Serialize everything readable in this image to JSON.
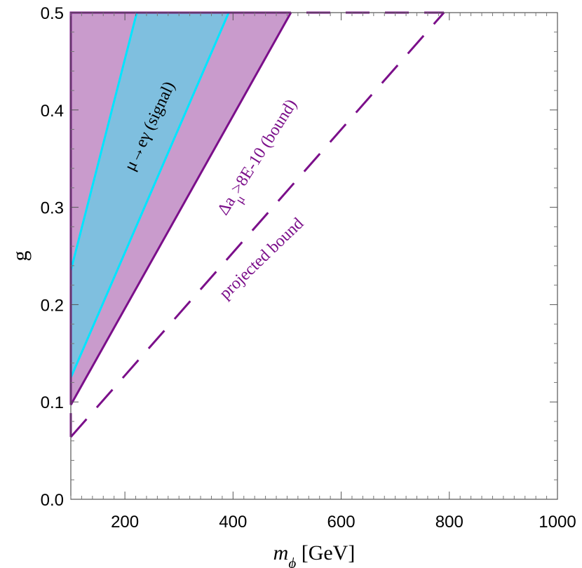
{
  "chart_data": {
    "type": "area",
    "xlabel_main": "m",
    "xlabel_sub": "ϕ",
    "xlabel_unit": " [GeV]",
    "ylabel": "g",
    "xlim": [
      100,
      1000
    ],
    "ylim": [
      0.0,
      0.5
    ],
    "x_ticks": [
      200,
      400,
      600,
      800,
      1000
    ],
    "x_tick_labels": [
      "200",
      "400",
      "600",
      "800",
      "1000"
    ],
    "y_ticks": [
      0.0,
      0.1,
      0.2,
      0.3,
      0.4,
      0.5
    ],
    "y_tick_labels": [
      "0.0",
      "0.1",
      "0.2",
      "0.3",
      "0.4",
      "0.5"
    ],
    "grid": false,
    "colors": {
      "bound_fill": "#c99bcc",
      "bound_line": "#7b0f8a",
      "signal_fill": "#7fbfdf",
      "signal_line": "#00e5ff",
      "projected_line": "#7b0f8a",
      "signal_text": "#000000",
      "bound_text": "#7b0f8a"
    },
    "regions": [
      {
        "id": "bound",
        "polygon": [
          [
            100,
            0.097
          ],
          [
            100,
            0.5
          ],
          [
            507,
            0.5
          ]
        ]
      },
      {
        "id": "signal",
        "polygon": [
          [
            100,
            0.125
          ],
          [
            100,
            0.235
          ],
          [
            222,
            0.5
          ],
          [
            392,
            0.5
          ]
        ]
      }
    ],
    "series": [
      {
        "id": "bound_edge",
        "style": "solid",
        "x": [
          100,
          507
        ],
        "y": [
          0.097,
          0.5
        ]
      },
      {
        "id": "signal_lower",
        "style": "solid",
        "x": [
          100,
          392
        ],
        "y": [
          0.125,
          0.5
        ]
      },
      {
        "id": "signal_upper",
        "style": "solid",
        "x": [
          100,
          222
        ],
        "y": [
          0.235,
          0.5
        ]
      },
      {
        "id": "projected",
        "style": "dashed",
        "x": [
          100,
          790
        ],
        "y": [
          0.064,
          0.5
        ]
      },
      {
        "id": "projected_top",
        "style": "dashed",
        "x": [
          100,
          790
        ],
        "y": [
          0.5,
          0.5
        ]
      },
      {
        "id": "projected_left",
        "style": "dashed",
        "x": [
          100,
          100
        ],
        "y": [
          0.064,
          0.5
        ]
      }
    ],
    "annotations": [
      {
        "id": "signal",
        "text_main": "μ→eγ (signal)"
      },
      {
        "id": "bound",
        "text_pre": "Δa",
        "text_sub": "μ",
        "text_post": ">8E-10 (bound)"
      },
      {
        "id": "projected",
        "text_main": "projected bound"
      }
    ]
  }
}
